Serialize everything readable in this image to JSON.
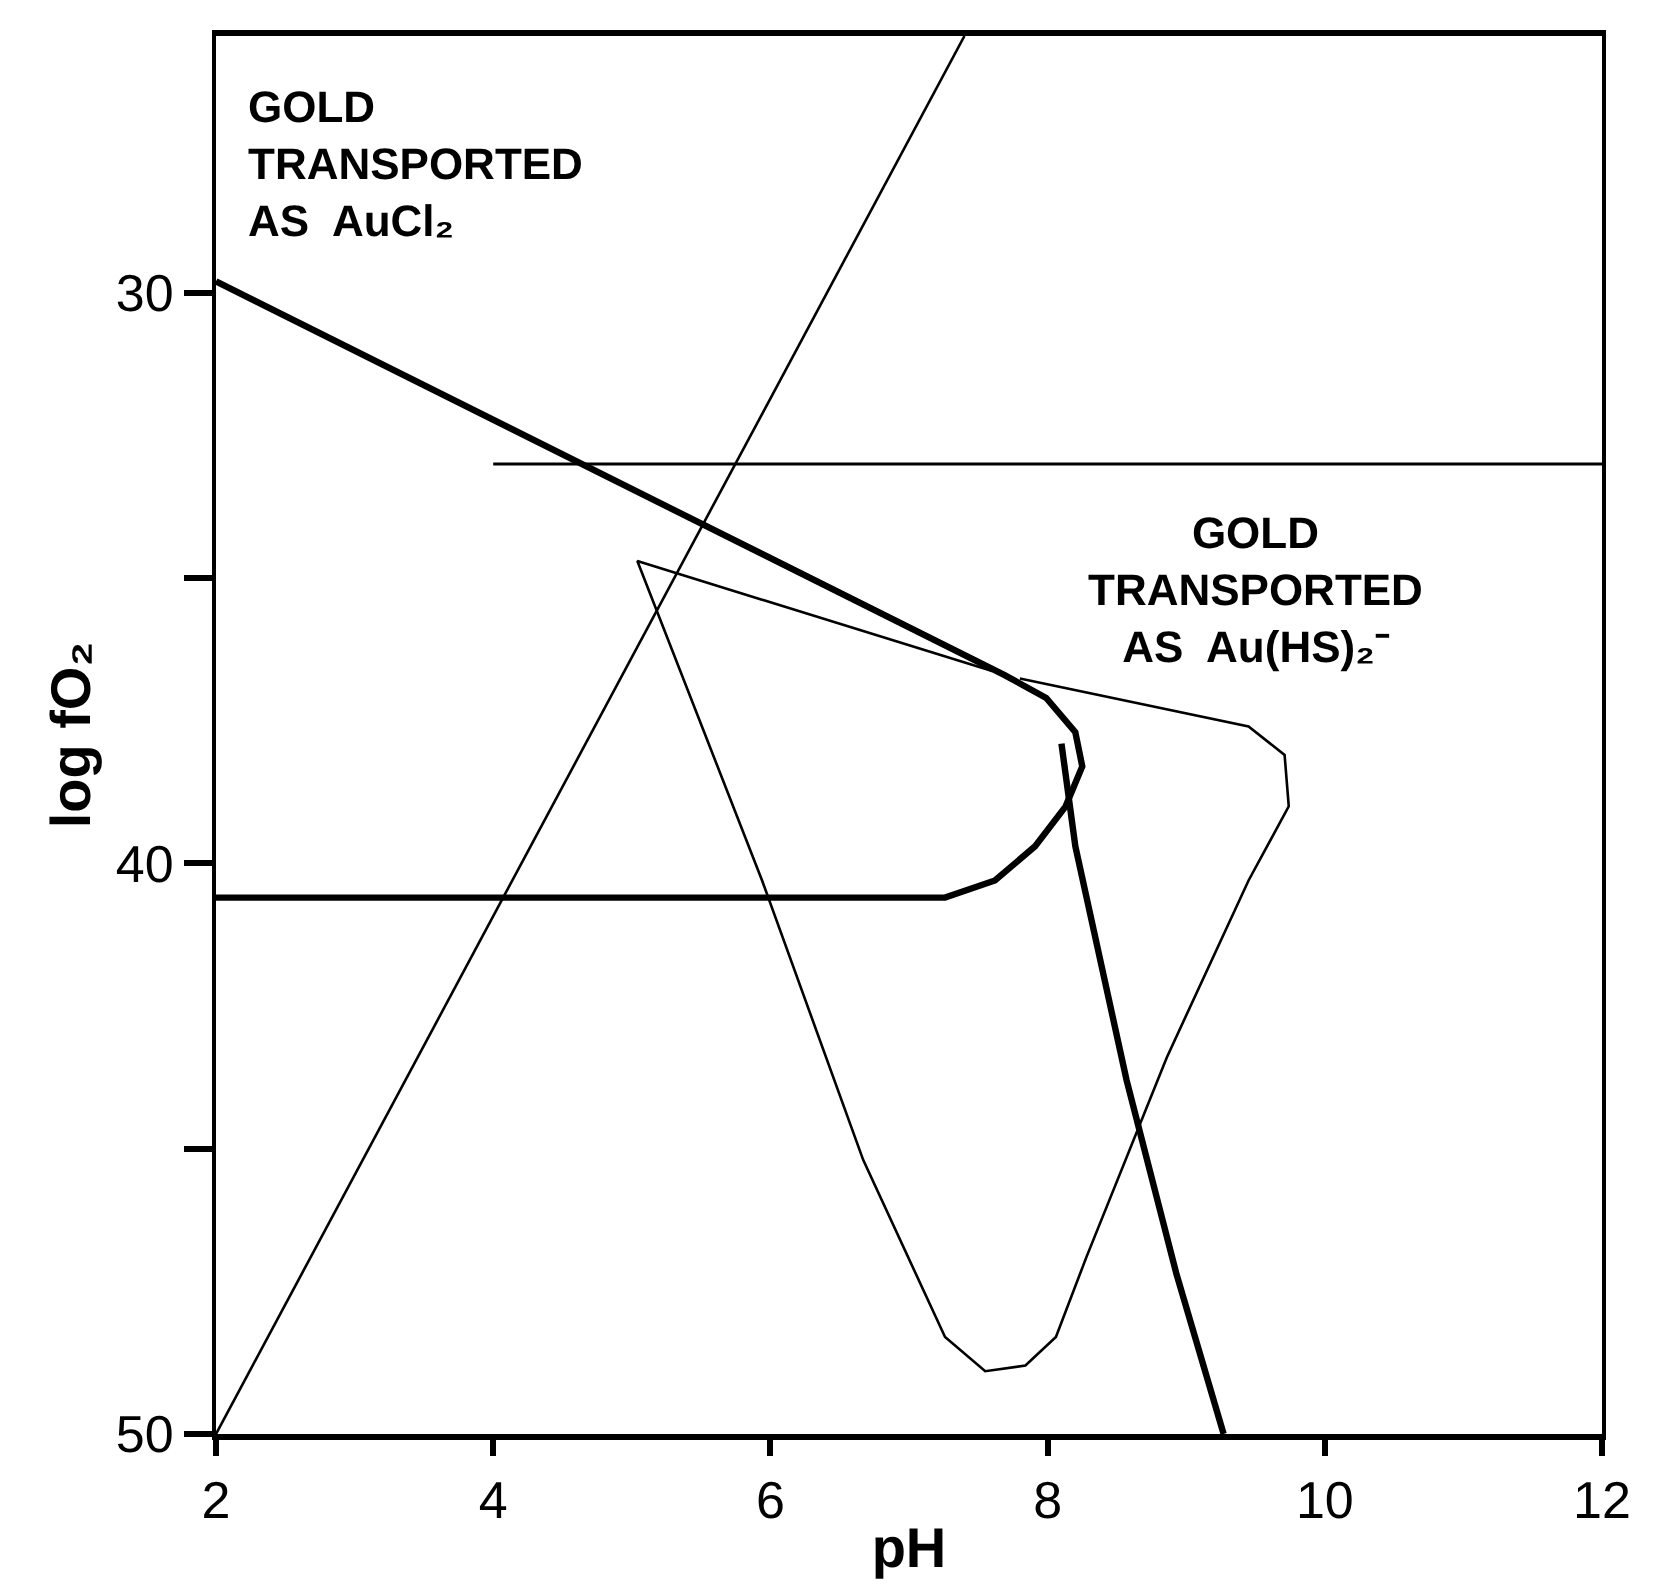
{
  "chart_data": {
    "type": "line",
    "xlabel": "pH",
    "ylabel": "log fO₂",
    "xlim": [
      2,
      12
    ],
    "xticks": [
      2,
      4,
      6,
      8,
      10,
      12
    ],
    "ylim": [
      50,
      25.5
    ],
    "yticks": [
      30,
      {
        "value": 35,
        "label": null
      },
      40,
      {
        "value": 45,
        "label": null
      },
      50
    ],
    "marker": "none",
    "line_style": "solid",
    "annotations": [
      "GOLD\nTRANSPORTED\nAS  AuCl₂",
      "GOLD\nTRANSPORTED\nAS  Au(HS)₂⁻"
    ],
    "series": [
      {
        "color": "#000000",
        "x": [
          2,
          7.4
        ],
        "values": [
          50,
          25.5
        ]
      },
      {
        "color": "#000000",
        "x": [
          2,
          7.69,
          7.99,
          8.2,
          8.25,
          8.13,
          7.91,
          7.62,
          7.26,
          2
        ],
        "values": [
          29.8,
          36.7,
          37.1,
          37.7,
          38.3,
          39.0,
          39.7,
          40.3,
          40.6,
          40.6
        ]
      },
      {
        "color": "#000000",
        "x": [
          4.0,
          12
        ],
        "values": [
          33.0,
          33.0
        ]
      },
      {
        "color": "#000000",
        "x": [
          8.1,
          8.2,
          8.57,
          8.93,
          9.27
        ],
        "values": [
          37.9,
          39.7,
          43.8,
          47.2,
          50
        ]
      },
      {
        "color": "#000000",
        "x": [
          7.6,
          5.04,
          5.94,
          6.67,
          7.26,
          7.55,
          7.84,
          8.06,
          8.28,
          8.86,
          9.45,
          9.74,
          9.71,
          9.45,
          7.8
        ],
        "values": [
          36.63,
          34.7,
          40.3,
          45.2,
          48.3,
          48.9,
          48.8,
          48.3,
          46.9,
          43.4,
          40.3,
          39.0,
          38.1,
          37.6,
          36.76
        ]
      }
    ]
  }
}
